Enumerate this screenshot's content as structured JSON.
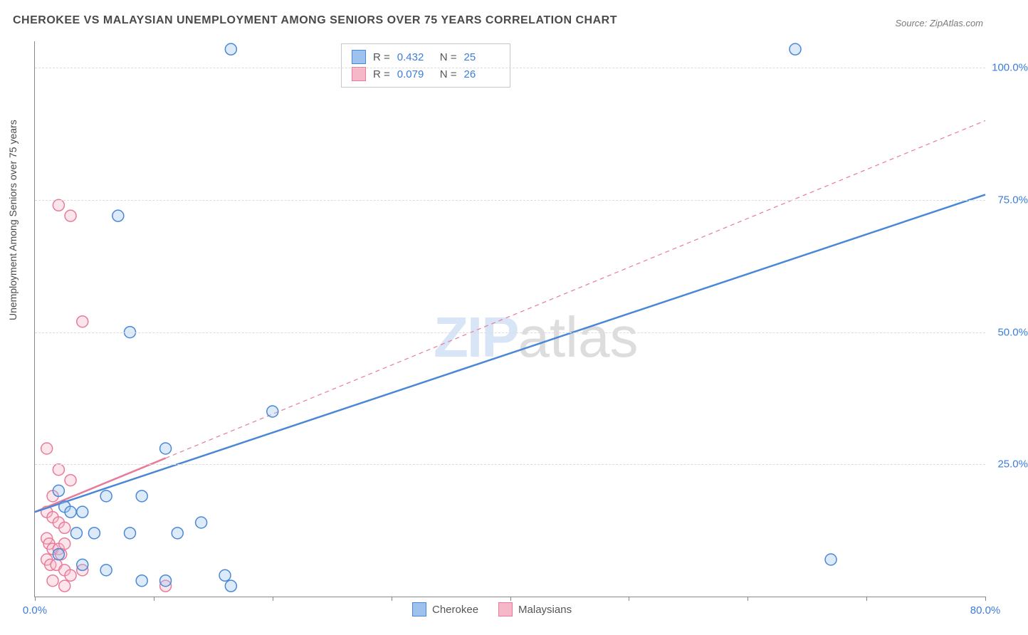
{
  "title": "CHEROKEE VS MALAYSIAN UNEMPLOYMENT AMONG SENIORS OVER 75 YEARS CORRELATION CHART",
  "source": "Source: ZipAtlas.com",
  "ylabel": "Unemployment Among Seniors over 75 years",
  "watermark_zip": "ZIP",
  "watermark_atlas": "atlas",
  "chart": {
    "type": "scatter",
    "background_color": "#ffffff",
    "grid_color": "#dcdcdc",
    "axis_color": "#888888",
    "tick_label_color": "#3b7dd8",
    "tick_fontsize": 15,
    "xlim": [
      0,
      80
    ],
    "ylim": [
      0,
      105
    ],
    "xticks": [
      0,
      10,
      20,
      30,
      40,
      50,
      60,
      70,
      80
    ],
    "xtick_labels": {
      "0": "0.0%",
      "80": "80.0%"
    },
    "yticks": [
      25,
      50,
      75,
      100
    ],
    "ytick_labels": {
      "25": "25.0%",
      "50": "50.0%",
      "75": "75.0%",
      "100": "100.0%"
    },
    "marker_radius": 8,
    "marker_stroke_width": 1.5,
    "marker_fill_opacity": 0.35,
    "trend_line_width_solid": 2.5,
    "trend_line_width_dash": 1.2,
    "trend_dash_pattern": "6,5"
  },
  "series": {
    "cherokee": {
      "label": "Cherokee",
      "color_stroke": "#4a88d6",
      "color_fill": "#9ec2ee",
      "R": "0.432",
      "N": "25",
      "points": [
        [
          16.5,
          103.5
        ],
        [
          64,
          103.5
        ],
        [
          7,
          72
        ],
        [
          8,
          50
        ],
        [
          11,
          28
        ],
        [
          20,
          35
        ],
        [
          67,
          7
        ],
        [
          2,
          20
        ],
        [
          2.5,
          17
        ],
        [
          3,
          16
        ],
        [
          4,
          16
        ],
        [
          6,
          19
        ],
        [
          9,
          19
        ],
        [
          3.5,
          12
        ],
        [
          5,
          12
        ],
        [
          8,
          12
        ],
        [
          12,
          12
        ],
        [
          14,
          14
        ],
        [
          2,
          8
        ],
        [
          4,
          6
        ],
        [
          6,
          5
        ],
        [
          9,
          3
        ],
        [
          11,
          3
        ],
        [
          16,
          4
        ],
        [
          16.5,
          2
        ]
      ],
      "trend": {
        "x1": 0,
        "y1": 16,
        "x2": 80,
        "y2": 76,
        "dash_from_x": 80
      }
    },
    "malaysians": {
      "label": "Malaysians",
      "color_stroke": "#e87b9a",
      "color_fill": "#f5b8c8",
      "R": "0.079",
      "N": "26",
      "points": [
        [
          2,
          74
        ],
        [
          3,
          72
        ],
        [
          4,
          52
        ],
        [
          1,
          28
        ],
        [
          2,
          24
        ],
        [
          3,
          22
        ],
        [
          1.5,
          19
        ],
        [
          1,
          16
        ],
        [
          1.5,
          15
        ],
        [
          2,
          14
        ],
        [
          2.5,
          13
        ],
        [
          1,
          11
        ],
        [
          1.2,
          10
        ],
        [
          1.5,
          9
        ],
        [
          2,
          9
        ],
        [
          2.2,
          8
        ],
        [
          2.5,
          10
        ],
        [
          1,
          7
        ],
        [
          1.3,
          6
        ],
        [
          1.8,
          6
        ],
        [
          2.5,
          5
        ],
        [
          3,
          4
        ],
        [
          1.5,
          3
        ],
        [
          2.5,
          2
        ],
        [
          4,
          5
        ],
        [
          11,
          2
        ]
      ],
      "trend": {
        "x1": 0,
        "y1": 16,
        "x2": 80,
        "y2": 90,
        "dash_from_x": 11
      }
    }
  },
  "stats_labels": {
    "R": "R =",
    "N": "N ="
  },
  "legend_order": [
    "cherokee",
    "malaysians"
  ]
}
